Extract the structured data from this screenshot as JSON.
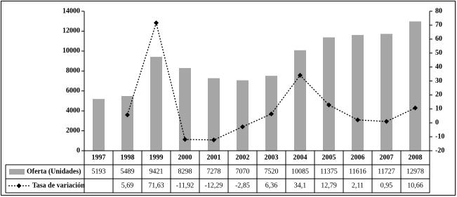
{
  "chart_data": {
    "type": "bar-line",
    "categories": [
      "1997",
      "1998",
      "1999",
      "2000",
      "2001",
      "2002",
      "2003",
      "2004",
      "2005",
      "2006",
      "2007",
      "2008"
    ],
    "series": [
      {
        "name": "Oferta (Unidades)",
        "type": "bar",
        "color": "#a6a6a6",
        "values": [
          5193,
          5489,
          9421,
          8298,
          7278,
          7070,
          7520,
          10085,
          11375,
          11616,
          11727,
          12978
        ]
      },
      {
        "name": "Tasa de variación",
        "type": "line",
        "axis": "y2",
        "color": "#000000",
        "values": [
          null,
          5.69,
          71.63,
          -11.92,
          -12.29,
          -2.85,
          6.36,
          34.1,
          12.79,
          2.11,
          0.95,
          10.66
        ],
        "value_labels": [
          null,
          "5,69",
          "71,63",
          "-11,92",
          "-12,29",
          "-2,85",
          "6,36",
          "34,1",
          "12,79",
          "2,11",
          "0,95",
          "10,66"
        ]
      }
    ],
    "ylim": [
      0,
      14000
    ],
    "yticks": [
      0,
      2000,
      4000,
      6000,
      8000,
      10000,
      12000,
      14000
    ],
    "y2lim": [
      -20,
      80
    ],
    "y2ticks": [
      -20,
      -10,
      0,
      10,
      20,
      30,
      40,
      50,
      60,
      70,
      80
    ],
    "grid": false
  }
}
